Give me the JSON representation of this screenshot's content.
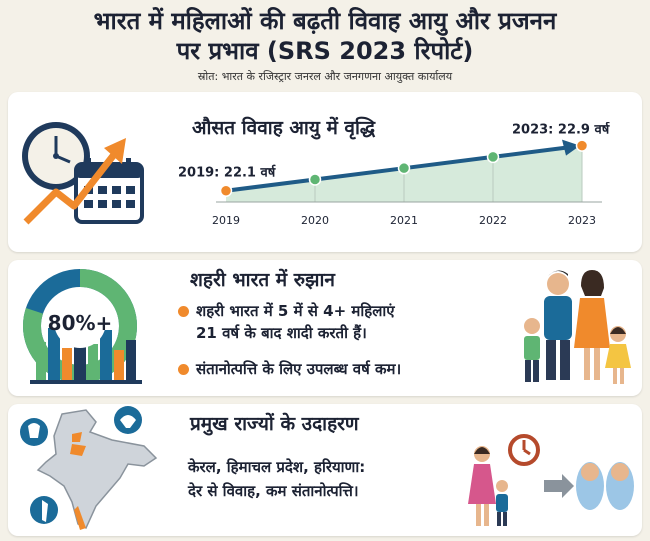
{
  "header": {
    "title_line1": "भारत में महिलाओं की बढ़ती विवाह आयु और प्रजनन",
    "title_line2": "पर प्रभाव (SRS 2023 रिपोर्ट)",
    "source": "स्रोत: भारत के रजिस्ट्रार जनरल और जनगणना आयुक्त कार्यालय"
  },
  "marriage_age": {
    "heading": "औसत विवाह आयु में वृद्धि",
    "start_label": "2019: 22.1 वर्ष",
    "end_label": "2023: 22.9 वर्ष"
  },
  "chart_data": {
    "type": "area",
    "x": [
      "2019",
      "2020",
      "2021",
      "2022",
      "2023"
    ],
    "values": [
      22.1,
      22.3,
      22.5,
      22.7,
      22.9
    ],
    "title": "औसत विवाह आयु में वृद्धि",
    "xlabel": "",
    "ylabel": "",
    "grid": false,
    "colors": {
      "line": "#1f5b87",
      "fill": "#d6eadb",
      "start": "#f08a2c",
      "mid": "#5fb573",
      "end": "#f08a2c"
    }
  },
  "urban": {
    "heading": "शहरी भारत में रुझान",
    "donut_label": "80%+",
    "donut_value": 0.8,
    "bullet1_line1": "शहरी भारत में 5 में से 4+ महिलाएं",
    "bullet1_line2": "21 वर्ष के बाद शादी करती हैं।",
    "bullet2": "संतानोत्पत्ति के लिए उपलब्ध वर्ष कम।"
  },
  "states": {
    "heading": "प्रमुख राज्यों के उदाहरण",
    "names": "केरल, हिमाचल प्रदेश, हरियाणा:",
    "effect": "देर से विवाह, कम संतानोत्पत्ति।"
  },
  "colors": {
    "orange": "#f08a2c",
    "green": "#5fb573",
    "navy": "#1f5b87",
    "teal": "#1b6b99"
  },
  "icons": [
    "clock-icon",
    "calendar-icon",
    "rising-arrow-icon",
    "city-skyline-icon",
    "family-icon",
    "india-map-icon",
    "mother-child-icon",
    "stopwatch-icon",
    "newborn-babies-icon"
  ]
}
